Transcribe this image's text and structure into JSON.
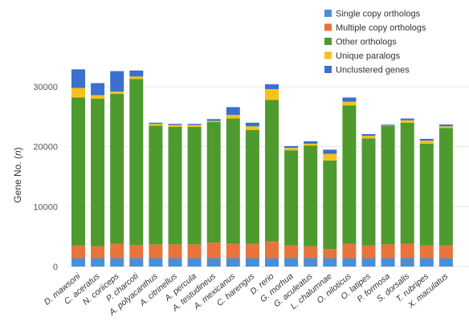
{
  "chart_data": {
    "type": "bar",
    "stacked": true,
    "title": "",
    "xlabel": "",
    "ylabel": "Gene No. (n)",
    "ylabel_plain": "Gene No. (",
    "ylabel_italic": "n",
    "ylabel_close": ")",
    "ylim": [
      0,
      35000
    ],
    "yticks": [
      0,
      10000,
      20000,
      30000
    ],
    "ytick_labels": [
      "0",
      "10000",
      "20000",
      "30000"
    ],
    "grid": true,
    "legend_position": "top-right",
    "categories": [
      "D. mawsoni",
      "C. aceratus",
      "N. coriiceps",
      "P. charcoti",
      "A. polyacanthus",
      "A. citrinellus",
      "A. percula",
      "A. testudineus",
      "A. mexicanus",
      "C. harengus",
      "D. rerio",
      "G. morhua",
      "G. aculeatus",
      "L. chalumnae",
      "O. niloticus",
      "O. latipes",
      "P. formosa",
      "S. dorsalis",
      "T. rubripes",
      "X. maculatus"
    ],
    "series": [
      {
        "name": "Single copy orthologs",
        "color": "#4a8fd6",
        "values": [
          1400,
          1400,
          1400,
          1400,
          1400,
          1400,
          1400,
          1400,
          1400,
          1400,
          1400,
          1400,
          1400,
          1400,
          1400,
          1400,
          1400,
          1400,
          1400,
          1400
        ]
      },
      {
        "name": "Multiple copy orthologs",
        "color": "#e8743b",
        "values": [
          2100,
          2000,
          2400,
          2200,
          2300,
          2300,
          2300,
          2600,
          2400,
          2400,
          2800,
          2100,
          2000,
          1500,
          2400,
          2100,
          2300,
          2400,
          2100,
          2100
        ]
      },
      {
        "name": "Other orthologs",
        "color": "#4f9a2e",
        "values": [
          24700,
          24600,
          25000,
          27700,
          19800,
          19600,
          19600,
          20100,
          20900,
          19000,
          23600,
          15900,
          16800,
          14800,
          23100,
          17900,
          19800,
          20200,
          17000,
          19600
        ]
      },
      {
        "name": "Unique paralogs",
        "color": "#f6c21a",
        "values": [
          1600,
          600,
          400,
          400,
          300,
          300,
          300,
          200,
          600,
          600,
          1800,
          400,
          300,
          1100,
          600,
          400,
          100,
          400,
          500,
          300
        ]
      },
      {
        "name": "Unclustered genes",
        "color": "#3b6fd0",
        "values": [
          3100,
          2000,
          3400,
          1000,
          200,
          200,
          200,
          300,
          1300,
          600,
          800,
          300,
          400,
          700,
          700,
          300,
          100,
          300,
          300,
          300
        ]
      }
    ]
  }
}
